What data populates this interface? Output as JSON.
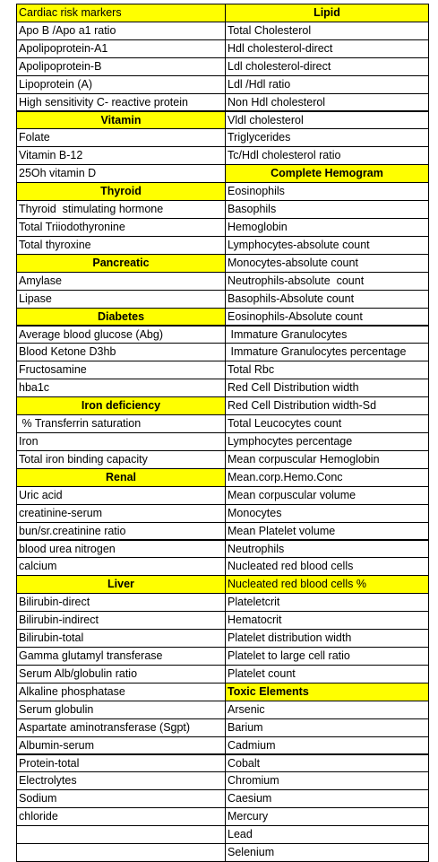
{
  "table": {
    "rows": [
      [
        {
          "text": "Cardiac risk markers",
          "style": "highlight"
        },
        {
          "text": "Lipid",
          "style": "header"
        }
      ],
      [
        "Apo B /Apo a1 ratio",
        "Total Cholesterol"
      ],
      [
        "Apolipoprotein-A1",
        "Hdl cholesterol-direct"
      ],
      [
        "Apolipoprotein-B",
        "Ldl cholesterol-direct"
      ],
      [
        "Lipoprotein (A)",
        "Ldl /Hdl ratio"
      ],
      [
        "High sensitivity C- reactive protein",
        "Non Hdl cholesterol"
      ],
      [
        {
          "text": "Vitamin",
          "style": "header"
        },
        "Vldl cholesterol"
      ],
      [
        "Folate",
        "Triglycerides"
      ],
      [
        "Vitamin B-12",
        "Tc/Hdl cholesterol ratio"
      ],
      [
        "25Oh vitamin D",
        {
          "text": "Complete Hemogram",
          "style": "header"
        }
      ],
      [
        {
          "text": "Thyroid",
          "style": "header"
        },
        "Eosinophils"
      ],
      [
        "Thyroid  stimulating hormone",
        "Basophils"
      ],
      [
        "Total Triiodothyronine",
        "Hemoglobin"
      ],
      [
        "Total thyroxine",
        "Lymphocytes-absolute count"
      ],
      [
        {
          "text": "Pancreatic",
          "style": "header"
        },
        "Monocytes-absolute count"
      ],
      [
        "Amylase",
        "Neutrophils-absolute  count"
      ],
      [
        "Lipase",
        "Basophils-Absolute count"
      ],
      [
        {
          "text": "Diabetes",
          "style": "header"
        },
        "Eosinophils-Absolute count"
      ],
      [
        "Average blood glucose (Abg)",
        " Immature Granulocytes"
      ],
      [
        "Blood Ketone D3hb",
        " Immature Granulocytes percentage"
      ],
      [
        "Fructosamine",
        "Total Rbc"
      ],
      [
        "hba1c",
        "Red Cell Distribution width"
      ],
      [
        {
          "text": "Iron deficiency",
          "style": "header"
        },
        "Red Cell Distribution width-Sd"
      ],
      [
        " % Transferrin saturation",
        "Total Leucocytes count"
      ],
      [
        "Iron",
        "Lymphocytes percentage"
      ],
      [
        "Total iron binding capacity",
        "Mean corpuscular Hemoglobin"
      ],
      [
        {
          "text": "Renal",
          "style": "header"
        },
        "Mean.corp.Hemo.Conc"
      ],
      [
        "Uric acid",
        "Mean corpuscular volume"
      ],
      [
        "creatinine-serum",
        "Monocytes"
      ],
      [
        "bun/sr.creatinine ratio",
        "Mean Platelet volume"
      ],
      [
        "blood urea nitrogen",
        "Neutrophils"
      ],
      [
        "calcium",
        "Nucleated red blood cells"
      ],
      [
        {
          "text": "Liver",
          "style": "header"
        },
        {
          "text": "Nucleated red blood cells %",
          "style": "highlight"
        }
      ],
      [
        "Bilirubin-direct",
        "Plateletcrit"
      ],
      [
        "Bilirubin-indirect",
        "Hematocrit"
      ],
      [
        "Bilirubin-total",
        "Platelet distribution width"
      ],
      [
        "Gamma glutamyl transferase",
        "Platelet to large cell ratio"
      ],
      [
        "Serum Alb/globulin ratio",
        "Platelet count"
      ],
      [
        "Alkaline phosphatase",
        {
          "text": "Toxic Elements",
          "style": "header-left"
        }
      ],
      [
        "Serum globulin",
        "Arsenic"
      ],
      [
        "Aspartate aminotransferase (Sgpt)",
        "Barium"
      ],
      [
        "Albumin-serum",
        "Cadmium"
      ],
      [
        "Protein-total",
        "Cobalt"
      ],
      [
        "Electrolytes",
        "Chromium"
      ],
      [
        "Sodium",
        "Caesium"
      ],
      [
        "chloride",
        "Mercury"
      ],
      [
        null,
        "Lead"
      ],
      [
        null,
        "Selenium"
      ]
    ]
  }
}
